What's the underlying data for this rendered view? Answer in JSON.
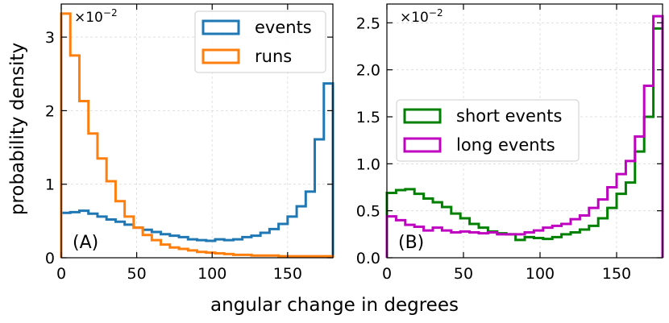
{
  "chart_data": [
    {
      "type": "histogram",
      "panel_label": "(A)",
      "scale_label": "×10",
      "scale_exponent": "−2",
      "xlim": [
        0,
        180
      ],
      "ylim": [
        0,
        3.45
      ],
      "xticks": [
        0,
        50,
        100,
        150
      ],
      "yticks": [
        0,
        1,
        2,
        3
      ],
      "bin_width": 6,
      "legend": {
        "location": "upper-right"
      },
      "series": [
        {
          "name": "events",
          "color": "#1f77b4",
          "values": [
            0.61,
            0.62,
            0.64,
            0.6,
            0.56,
            0.52,
            0.49,
            0.45,
            0.41,
            0.38,
            0.35,
            0.32,
            0.3,
            0.28,
            0.25,
            0.24,
            0.23,
            0.25,
            0.24,
            0.25,
            0.28,
            0.3,
            0.34,
            0.39,
            0.46,
            0.56,
            0.7,
            0.9,
            1.61,
            2.37
          ]
        },
        {
          "name": "runs",
          "color": "#ff7f0e",
          "values": [
            3.32,
            2.75,
            2.13,
            1.69,
            1.35,
            1.04,
            0.77,
            0.56,
            0.41,
            0.31,
            0.24,
            0.18,
            0.14,
            0.12,
            0.1,
            0.08,
            0.07,
            0.06,
            0.05,
            0.04,
            0.04,
            0.03,
            0.03,
            0.03,
            0.02,
            0.02,
            0.02,
            0.02,
            0.02,
            0.02
          ]
        }
      ]
    },
    {
      "type": "histogram",
      "panel_label": "(B)",
      "scale_label": "×10",
      "scale_exponent": "−2",
      "xlim": [
        0,
        180
      ],
      "ylim": [
        0,
        2.7
      ],
      "xticks": [
        0,
        50,
        100,
        150
      ],
      "yticks": [
        0.0,
        0.5,
        1.0,
        1.5,
        2.0,
        2.5
      ],
      "bin_width": 6,
      "legend": {
        "location": "center-left"
      },
      "series": [
        {
          "name": "short events",
          "color": "#008000",
          "values": [
            0.69,
            0.72,
            0.73,
            0.68,
            0.63,
            0.59,
            0.54,
            0.47,
            0.42,
            0.36,
            0.32,
            0.28,
            0.26,
            0.25,
            0.19,
            0.22,
            0.21,
            0.2,
            0.22,
            0.25,
            0.27,
            0.3,
            0.34,
            0.42,
            0.53,
            0.68,
            0.8,
            1.13,
            1.5,
            2.44
          ]
        },
        {
          "name": "long events",
          "color": "#c000c0",
          "values": [
            0.44,
            0.4,
            0.35,
            0.33,
            0.29,
            0.32,
            0.29,
            0.27,
            0.28,
            0.27,
            0.26,
            0.27,
            0.25,
            0.25,
            0.25,
            0.27,
            0.29,
            0.32,
            0.34,
            0.36,
            0.41,
            0.45,
            0.53,
            0.62,
            0.75,
            0.89,
            1.03,
            1.29,
            1.83,
            2.57
          ]
        }
      ]
    }
  ],
  "shared": {
    "ylabel": "probability density",
    "xlabel": "angular change in degrees"
  }
}
